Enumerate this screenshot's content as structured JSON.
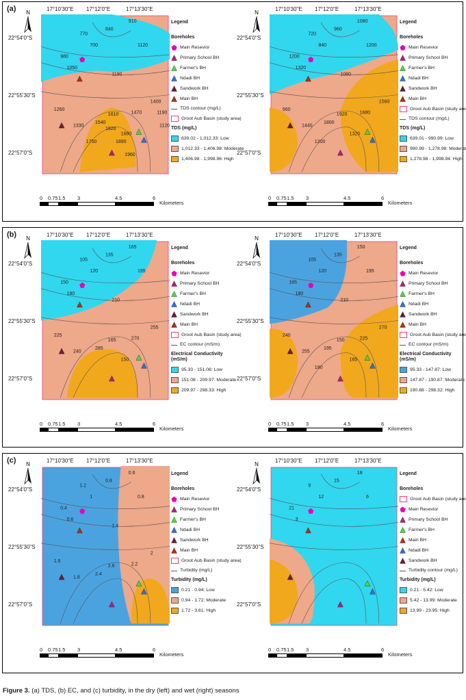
{
  "caption": {
    "label": "Figure 3.",
    "text": "(a) TDS, (b) EC, and (c) turbidity, in the dry (left) and wet (right) seasons"
  },
  "axes": {
    "north": "N",
    "lons": [
      "17°10'30\"E",
      "17°12'0\"E",
      "17°13'30\"E"
    ],
    "lats": [
      "22°54'0\"S",
      "22°55'30\"S",
      "22°57'0\"S"
    ],
    "scale_ticks": [
      "0",
      "0.75",
      "1.5",
      "3",
      "4.5",
      "6"
    ],
    "scale_unit": "Kilometers"
  },
  "colors": {
    "low_cyan": "#31d7ee",
    "low_blue": "#4aa3df",
    "moderate": "#eea88a",
    "high": "#f2a81d",
    "contour": "#555555",
    "basin": "#e8427c"
  },
  "rows": [
    {
      "tag": "(a)",
      "panels": [
        {
          "name": "tds-dry",
          "legend": {
            "title": "Legend",
            "boreholes": "Boreholes",
            "items": [
              "Main Resevior",
              "Primary School BH",
              "Farmer's BH",
              "Ndadi BH",
              "Sandwork BH",
              "Main BH",
              "TDS contour (mg/L)",
              "Groot Aub Basin (study area)"
            ],
            "class_title": "TDS (mg/L)",
            "classes": [
              "639.02 - 1,012.33: Low",
              "1,012.33 - 1,406.98: Moderate",
              "1,406.98 - 1,998.96: High"
            ]
          },
          "contour_labels": [
            "770",
            "700",
            "840",
            "910",
            "980",
            "1050",
            "1120",
            "1190",
            "1260",
            "1330",
            "1400",
            "1470",
            "1540",
            "1610",
            "1680",
            "1750",
            "1820",
            "1890",
            "1960",
            "1190",
            "1120"
          ]
        },
        {
          "name": "tds-wet",
          "legend": {
            "title": "Legend",
            "boreholes": "Boreholes",
            "items": [
              "Main Resevior",
              "Primary School BH",
              "Farmer's BH",
              "Ndadi BH",
              "Sandwork BH",
              "Main BH",
              "Groot Aub Basin (study area)",
              "TDS contour (mg/L)"
            ],
            "class_title": "TDS (mg/L)",
            "classes": [
              "639.01 - 990.99: Low",
              "990.99 - 1,278.98: Moderate",
              "1,278.98 - 1,998.94: High"
            ]
          },
          "contour_labels": [
            "720",
            "840",
            "960",
            "1080",
            "1200",
            "1320",
            "1200",
            "1080",
            "960",
            "1440",
            "1560",
            "1680",
            "1800",
            "1920",
            "1320",
            "1200"
          ]
        }
      ]
    },
    {
      "tag": "(b)",
      "panels": [
        {
          "name": "ec-dry",
          "legend": {
            "title": "Legend",
            "boreholes": "Boreholes",
            "items": [
              "Main Resevior",
              "Primary School BH",
              "Farmer's BH",
              "Ndadi BH",
              "Sandwork BH",
              "Main BH",
              "Groot Aub Basin (study area)",
              "EC contour (mS/m)"
            ],
            "class_title": "Electrical Conductivity (mS/m)",
            "classes": [
              "95.33 - 151.08: Low",
              "151.08 - 209.97: Moderate",
              "209.97 - 298.33: High"
            ]
          },
          "contour_labels": [
            "105",
            "120",
            "135",
            "165",
            "150",
            "180",
            "195",
            "210",
            "225",
            "240",
            "255",
            "270",
            "285",
            "165",
            "150"
          ]
        },
        {
          "name": "ec-wet",
          "legend": {
            "title": "Legend",
            "boreholes": "Boreholes",
            "items": [
              "Main Resevior",
              "Primary School BH",
              "Farmer's BH",
              "Ndadi BH",
              "Sandwork BH",
              "Main BH",
              "Groot Aub Basin (study area)",
              "EC contour (mS/m)"
            ],
            "class_title": "Electrical Conductivity (mS/m)",
            "classes": [
              "95.33 - 147.87: Low",
              "147.87 - 190.87: Moderate",
              "190.88 - 298.32: High"
            ]
          },
          "contour_labels": [
            "105",
            "120",
            "135",
            "150",
            "165",
            "180",
            "195",
            "210",
            "240",
            "255",
            "270",
            "225",
            "195",
            "150",
            "165",
            "180"
          ]
        }
      ]
    },
    {
      "tag": "(c)",
      "panels": [
        {
          "name": "turbidity-dry",
          "legend": {
            "title": "Legend",
            "boreholes": "Boreholes",
            "items": [
              "Main Resevior",
              "Primary School BH",
              "Farmer's BH",
              "Ndadi BH",
              "Sandwork BH",
              "Main BH",
              "Groot Aub Basin (study area)",
              "Turbidity (mg/L)"
            ],
            "class_title": "Turbidity (mg/L)",
            "classes": [
              "0.21 - 0.94: Low",
              "0.94 - 1.72: Moderate",
              "1.72 - 3.61: High"
            ]
          },
          "contour_labels": [
            "1.2",
            "1",
            "0.8",
            "0.6",
            "0.4",
            "0.6",
            "0.8",
            "1.4",
            "1.6",
            "1.8",
            "2",
            "2.2",
            "2.4",
            "2.6"
          ]
        },
        {
          "name": "turbidity-wet",
          "legend": {
            "title": "Legend",
            "boreholes": "Boreholes",
            "items": [
              "Groot Aub Basin (study area)",
              "Main Resevior",
              "Primary School BH",
              "Farmer's BH",
              "Main BH",
              "Ndadi BH",
              "Sandwork BH",
              "Turbidity contour (mg/L)"
            ],
            "class_title": "Turbidity (mg/L)",
            "classes": [
              "0.21 - 5.42: Low",
              "5.42 - 13.99: Moderate",
              "13.99 - 23.95: High"
            ]
          },
          "contour_labels": [
            "9",
            "12",
            "15",
            "18",
            "21",
            "3",
            "6"
          ]
        }
      ]
    }
  ]
}
